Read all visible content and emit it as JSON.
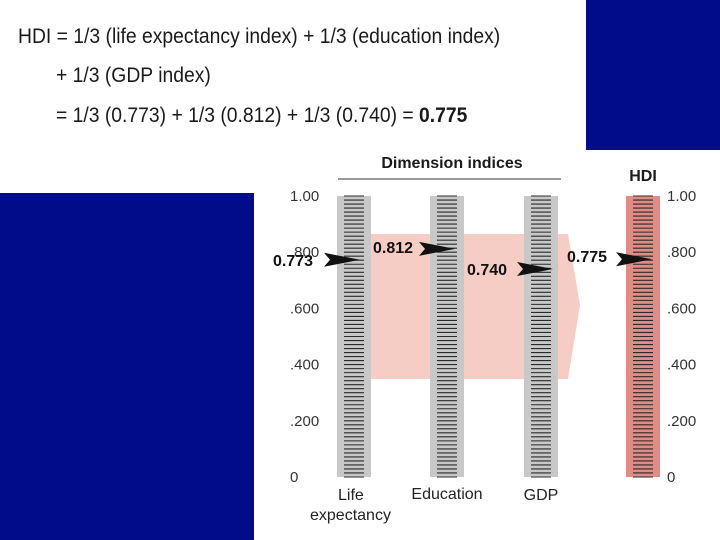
{
  "formula": {
    "line1": "HDI = 1/3 (life expectancy index) + 1/3 (education index)",
    "line2": "+ 1/3 (GDP index)",
    "line3_prefix": "= 1/3 (0.773) + 1/3 (0.812) + 1/3 (0.740) = ",
    "line3_result": "0.775"
  },
  "chart_data": {
    "type": "diagram",
    "dimension_header": "Dimension indices",
    "hdi_header": "HDI",
    "ticks": [
      "0",
      ".200",
      ".400",
      ".600",
      ".800",
      "1.00"
    ],
    "tick_values": [
      0,
      0.2,
      0.4,
      0.6,
      0.8,
      1.0
    ],
    "ylim": [
      0,
      1
    ],
    "bars": [
      {
        "label": "Life expectancy",
        "value": 0.773,
        "value_label": "0.773"
      },
      {
        "label": "Education",
        "value": 0.812,
        "value_label": "0.812"
      },
      {
        "label": "GDP",
        "value": 0.74,
        "value_label": "0.740"
      }
    ],
    "hdi": {
      "value": 0.775,
      "value_label": "0.775"
    }
  },
  "colors": {
    "blue": "#000c8a",
    "bar_gray": "#c8c8c8",
    "hdi_bar": "#e08c84",
    "band": "#f5cdc4"
  }
}
